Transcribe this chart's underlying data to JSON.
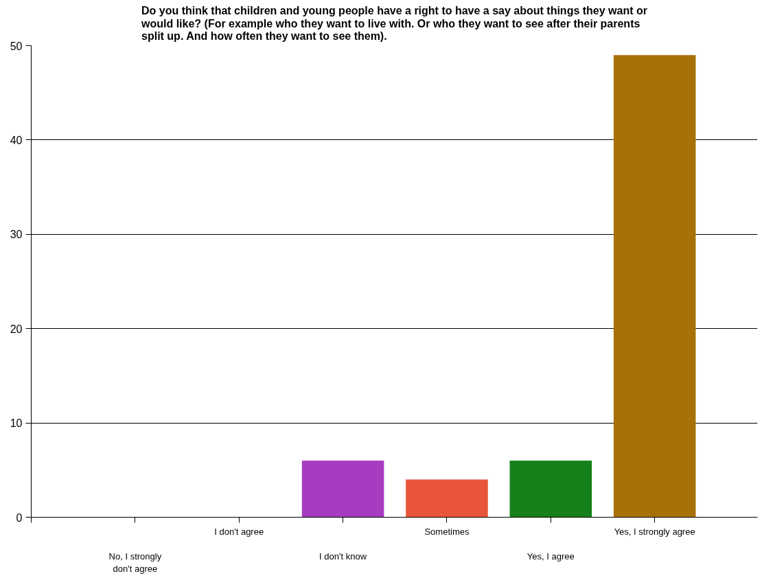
{
  "chart_data": {
    "type": "bar",
    "title": "Do you think that children and young people have a right to have a say about things they want or would like? (For example who they want to live with. Or who they want to see after their parents split up. And how often they want to see them).",
    "categories": [
      "No, I strongly don't agree",
      "I don't agree",
      "I don't know",
      "Sometimes",
      "Yes, I agree",
      "Yes, I strongly agree"
    ],
    "values": [
      0,
      0,
      6,
      4,
      6,
      49
    ],
    "colors": [
      "#a040c0",
      "#a040c0",
      "#a83cc0",
      "#e8553a",
      "#16801a",
      "#a87008"
    ],
    "ylim": [
      0,
      50
    ],
    "yticks": [
      0,
      10,
      20,
      30,
      40,
      50
    ],
    "grid": "y"
  }
}
